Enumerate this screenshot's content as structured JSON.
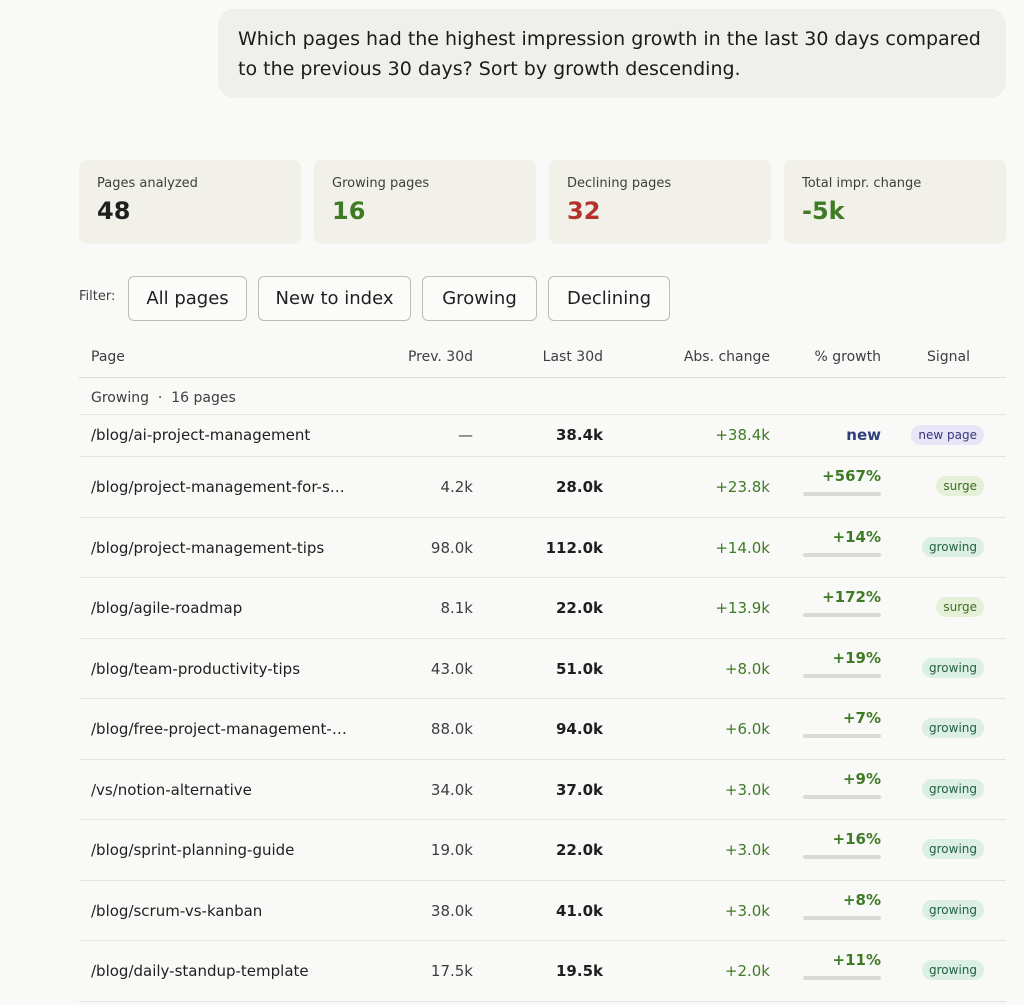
{
  "prompt": {
    "line1": "Which pages had the highest impression growth in the last 30 days compared",
    "line2": "to the previous 30 days? Sort by growth descending."
  },
  "stats": [
    {
      "label": "Pages analyzed",
      "value": "48",
      "color": "#1f1f1f"
    },
    {
      "label": "Growing pages",
      "value": "16",
      "color": "#3f7b24"
    },
    {
      "label": "Declining pages",
      "value": "32",
      "color": "#b3322d"
    },
    {
      "label": "Total impr. change",
      "value": "-5k",
      "color": "#3f7b24"
    }
  ],
  "filter": {
    "label": "Filter:",
    "chips": [
      "All pages",
      "New to index",
      "Growing",
      "Declining"
    ]
  },
  "table": {
    "columns": [
      "Page",
      "Prev. 30d",
      "Last 30d",
      "Abs. change",
      "% growth",
      "Signal"
    ],
    "group": {
      "name": "Growing",
      "separator": "·",
      "count": "16 pages"
    },
    "rows": [
      {
        "page": "/blog/ai-project-management",
        "prev": "—",
        "last": "38.4k",
        "abs": "+38.4k",
        "growth": "new",
        "signal": "new page",
        "signal_type": "newp"
      },
      {
        "page": "/blog/project-management-for-s…",
        "prev": "4.2k",
        "last": "28.0k",
        "abs": "+23.8k",
        "growth": "+567%",
        "bar": 0.0,
        "signal": "surge",
        "signal_type": "surge"
      },
      {
        "page": "/blog/project-management-tips",
        "prev": "98.0k",
        "last": "112.0k",
        "abs": "+14.0k",
        "growth": "+14%",
        "bar": 0.0,
        "signal": "growing",
        "signal_type": "growing"
      },
      {
        "page": "/blog/agile-roadmap",
        "prev": "8.1k",
        "last": "22.0k",
        "abs": "+13.9k",
        "growth": "+172%",
        "bar": 0.0,
        "signal": "surge",
        "signal_type": "surge"
      },
      {
        "page": "/blog/team-productivity-tips",
        "prev": "43.0k",
        "last": "51.0k",
        "abs": "+8.0k",
        "growth": "+19%",
        "bar": 0.0,
        "signal": "growing",
        "signal_type": "growing"
      },
      {
        "page": "/blog/free-project-management-…",
        "prev": "88.0k",
        "last": "94.0k",
        "abs": "+6.0k",
        "growth": "+7%",
        "bar": 0.0,
        "signal": "growing",
        "signal_type": "growing"
      },
      {
        "page": "/vs/notion-alternative",
        "prev": "34.0k",
        "last": "37.0k",
        "abs": "+3.0k",
        "growth": "+9%",
        "bar": 0.0,
        "signal": "growing",
        "signal_type": "growing"
      },
      {
        "page": "/blog/sprint-planning-guide",
        "prev": "19.0k",
        "last": "22.0k",
        "abs": "+3.0k",
        "growth": "+16%",
        "bar": 0.0,
        "signal": "growing",
        "signal_type": "growing"
      },
      {
        "page": "/blog/scrum-vs-kanban",
        "prev": "38.0k",
        "last": "41.0k",
        "abs": "+3.0k",
        "growth": "+8%",
        "bar": 0.0,
        "signal": "growing",
        "signal_type": "growing"
      },
      {
        "page": "/blog/daily-standup-template",
        "prev": "17.5k",
        "last": "19.5k",
        "abs": "+2.0k",
        "growth": "+11%",
        "bar": 0.0,
        "signal": "growing",
        "signal_type": "growing"
      }
    ]
  }
}
